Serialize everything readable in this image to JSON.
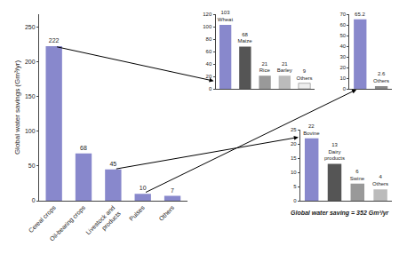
{
  "chart_data": [
    {
      "type": "bar",
      "categories": [
        "Cereal crops",
        "Oil-bearing crops",
        "Livestock and\nproducts",
        "Pulses",
        "Others"
      ],
      "values": [
        222,
        68,
        45,
        10,
        7
      ],
      "color": "#8888cc",
      "ylabel": "Global water savings (Gm³/yr)",
      "ylim": [
        0,
        268
      ],
      "yticks": [
        0,
        50,
        100,
        150,
        200,
        250
      ],
      "data_labels": true,
      "grid": false,
      "annotations": [
        "Global water saving = 352 Gm³/yr"
      ]
    },
    {
      "type": "bar",
      "categories": [
        "Wheat",
        "Maize",
        "Rice",
        "Barley",
        "Others"
      ],
      "values": [
        103,
        68,
        21,
        21,
        9
      ],
      "colors": [
        "#8888cc",
        "#555555",
        "#999999",
        "#bbbbbb",
        "#eeeeee"
      ],
      "ylim": [
        0,
        120
      ],
      "yticks": [
        0,
        20,
        40,
        60,
        80,
        100,
        120
      ],
      "data_labels": true,
      "tick_labels": "y",
      "grid": false
    },
    {
      "type": "bar",
      "categories": [
        null,
        "Others"
      ],
      "values": [
        65.2,
        2.6
      ],
      "colors": [
        "#8888cc",
        "#888888"
      ],
      "ylim": [
        0,
        70
      ],
      "yticks": [
        0,
        10,
        20,
        30,
        40,
        50,
        60,
        70
      ],
      "data_labels": true,
      "tick_labels": "y",
      "grid": false
    },
    {
      "type": "bar",
      "categories": [
        "Bovine",
        "Dairy\nproducts",
        "Swine",
        "Others"
      ],
      "values": [
        22,
        13,
        6,
        4
      ],
      "colors": [
        "#8888cc",
        "#555555",
        "#999999",
        "#bbbbbb"
      ],
      "ylim": [
        0,
        25
      ],
      "yticks": [
        0,
        5,
        10,
        15,
        20,
        25
      ],
      "data_labels": true,
      "tick_labels": "y",
      "grid": false
    }
  ]
}
